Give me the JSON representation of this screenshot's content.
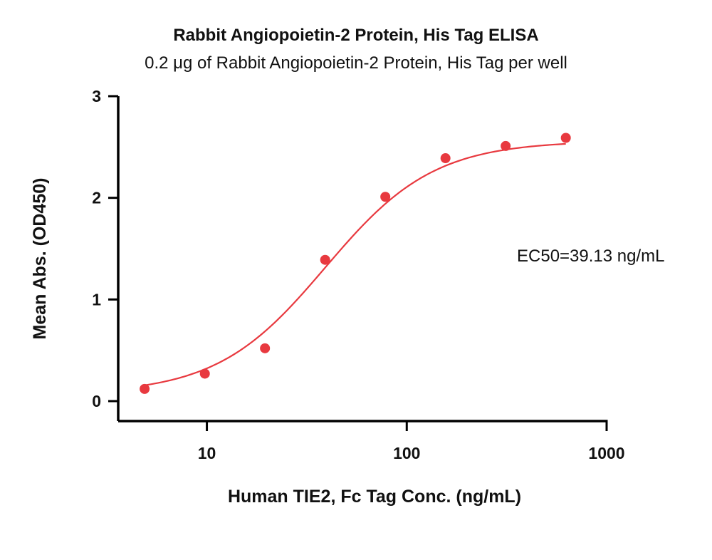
{
  "chart_data": {
    "type": "scatter",
    "title": "Rabbit Angiopoietin-2 Protein, His Tag ELISA",
    "subtitle": "0.2 μg of Rabbit Angiopoietin-2 Protein, His Tag per well",
    "xlabel": "Human TIE2, Fc Tag Conc. (ng/mL)",
    "ylabel": "Mean Abs. (OD450)",
    "xscale": "log",
    "xlim": [
      3.6,
      1000
    ],
    "ylim": [
      -0.2,
      3
    ],
    "xticks": [
      10,
      100,
      1000
    ],
    "xtick_labels": [
      "10",
      "100",
      "1000"
    ],
    "yticks": [
      0,
      1,
      2,
      3
    ],
    "ytick_labels": [
      "0",
      "1",
      "2",
      "3"
    ],
    "grid": false,
    "legend": "none",
    "series": [
      {
        "color": "#e8393f",
        "x": [
          4.88,
          9.77,
          19.53,
          39.06,
          78.13,
          156.25,
          312.5,
          625
        ],
        "y": [
          0.12,
          0.27,
          0.52,
          1.39,
          2.01,
          2.39,
          2.51,
          2.59
        ]
      }
    ],
    "fit": {
      "type": "4PL",
      "color": "#e8393f",
      "bottom": 0.07,
      "top": 2.56,
      "ec50": 39.13,
      "hill": 1.6
    },
    "annotations": [
      {
        "text": "EC50=39.13 ng/mL",
        "position": "right"
      }
    ]
  }
}
